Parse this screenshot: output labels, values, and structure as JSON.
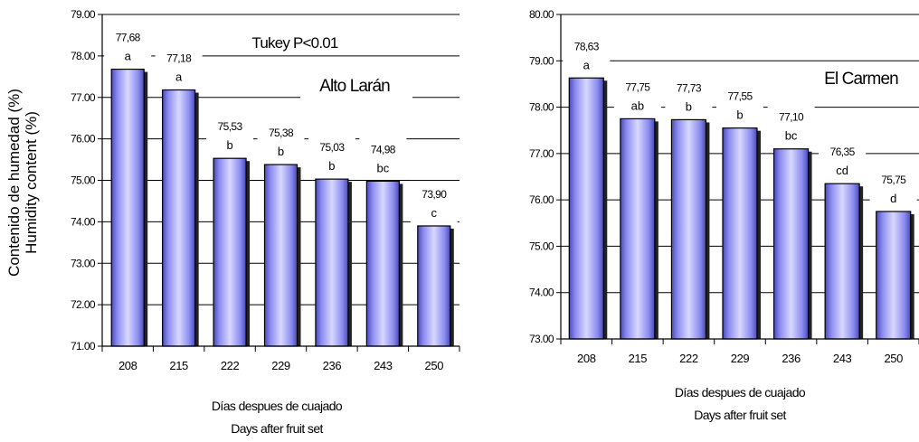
{
  "chart_data": [
    {
      "type": "bar",
      "categories": [
        "208",
        "215",
        "222",
        "229",
        "236",
        "243",
        "250"
      ],
      "values": [
        77.68,
        77.18,
        75.53,
        75.38,
        75.03,
        74.98,
        73.9
      ],
      "value_labels": [
        "77,68",
        "77,18",
        "75,53",
        "75,38",
        "75,03",
        "74,98",
        "73,90"
      ],
      "group_labels": [
        "a",
        "a",
        "b",
        "b",
        "b",
        "bc",
        "c"
      ],
      "ylim": [
        71,
        79
      ],
      "y_ticks": [
        "71.00",
        "72.00",
        "73.00",
        "74.00",
        "75.00",
        "76.00",
        "77.00",
        "78.00",
        "79.00"
      ],
      "ylabel_lines": [
        "Contenido de humedad (%)",
        "Humidity content (%)"
      ],
      "xlabel_lines": [
        "Días despues de cuajado",
        "Days after fruit set"
      ],
      "annotations": [
        "Tukey P<0.01",
        "Alto Larán"
      ],
      "grid": "horizontal",
      "bar_color": "#9999ff"
    },
    {
      "type": "bar",
      "categories": [
        "208",
        "215",
        "222",
        "229",
        "236",
        "243",
        "250"
      ],
      "values": [
        78.63,
        77.75,
        77.73,
        77.55,
        77.1,
        76.35,
        75.75
      ],
      "value_labels": [
        "78,63",
        "77,75",
        "77,73",
        "77,55",
        "77,10",
        "76,35",
        "75,75"
      ],
      "group_labels": [
        "a",
        "ab",
        "b",
        "b",
        "bc",
        "cd",
        "d"
      ],
      "ylim": [
        73,
        80
      ],
      "y_ticks": [
        "73.00",
        "74.00",
        "75.00",
        "76.00",
        "77.00",
        "78.00",
        "79.00",
        "80.00"
      ],
      "xlabel_lines": [
        "Días despues de cuajado",
        "Days after fruit set"
      ],
      "annotations": [
        "El Carmen"
      ],
      "grid": "horizontal",
      "bar_color": "#9999ff"
    }
  ]
}
